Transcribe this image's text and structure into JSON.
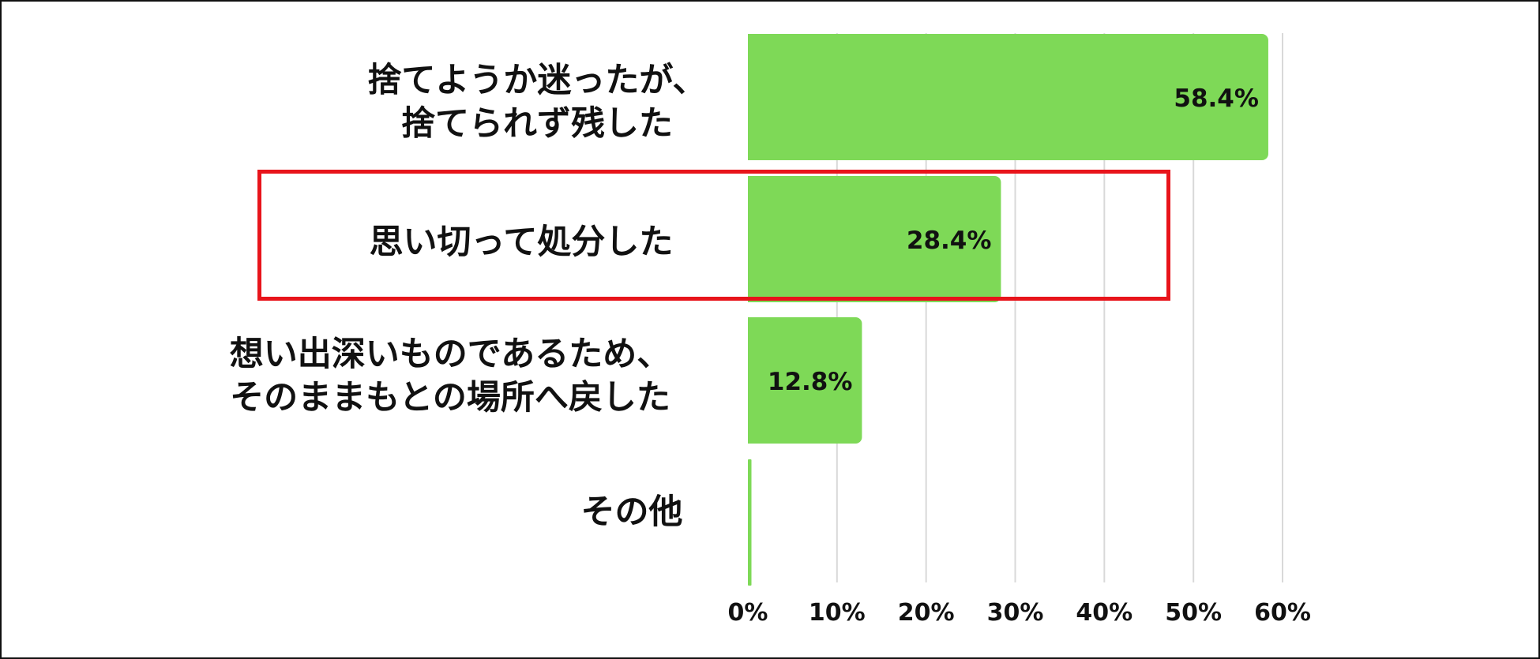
{
  "chart_data": {
    "type": "bar",
    "orientation": "horizontal",
    "categories": [
      "捨てようか迷ったが、\n捨てられず残した",
      "思い切って処分した",
      "想い出深いものであるため、\nそのままもとの場所へ戻した",
      "その他"
    ],
    "values": [
      58.4,
      28.4,
      12.8,
      0.4
    ],
    "data_labels": [
      "58.4%",
      "28.4%",
      "12.8%",
      ""
    ],
    "xlim": [
      0,
      60
    ],
    "x_ticks": [
      "0%",
      "10%",
      "20%",
      "30%",
      "40%",
      "50%",
      "60%"
    ],
    "grid": "vertical",
    "bar_color": "#7ed957",
    "highlight_category": "思い切って処分した",
    "highlight_color": "#e8141b"
  }
}
